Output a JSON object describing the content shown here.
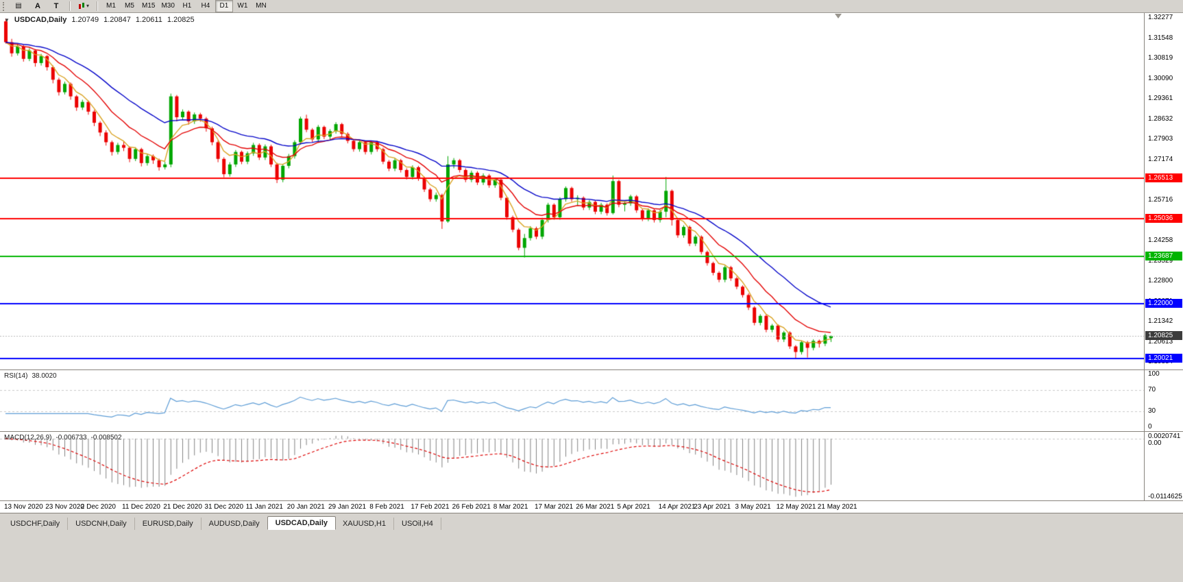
{
  "toolbar": {
    "menu_icon_glyph": "▤",
    "dropdown_caret": "▾",
    "tool_buttons": [
      {
        "label": "A",
        "name": "font-tool-button"
      },
      {
        "label": "T",
        "name": "text-tool-button"
      }
    ],
    "timeframes": [
      "M1",
      "M5",
      "M15",
      "M30",
      "H1",
      "H4",
      "D1",
      "W1",
      "MN"
    ],
    "active_timeframe": "D1"
  },
  "chart_header": {
    "symbol": "USDCAD,Daily",
    "open": "1.20749",
    "high": "1.20847",
    "low": "1.20611",
    "close": "1.20825"
  },
  "chart_data": {
    "type": "candlestick",
    "symbol": "USDCAD",
    "timeframe": "Daily",
    "colors": {
      "bull": "#00A600",
      "bear": "#EB0000"
    },
    "price_axis": {
      "min": 1.1962,
      "max": 1.3245,
      "labels": [
        "1.32277",
        "1.31548",
        "1.30819",
        "1.30090",
        "1.29361",
        "1.28632",
        "1.27903",
        "1.27174",
        "1.26445",
        "1.25716",
        "1.24987",
        "1.24258",
        "1.23529",
        "1.22800",
        "1.22071",
        "1.21342",
        "1.20613",
        "1.19884"
      ]
    },
    "x_labels": [
      {
        "text": "13 Nov 2020",
        "i": 0
      },
      {
        "text": "23 Nov 2020",
        "i": 7
      },
      {
        "text": "2 Dec 2020",
        "i": 13
      },
      {
        "text": "11 Dec 2020",
        "i": 20
      },
      {
        "text": "21 Dec 2020",
        "i": 27
      },
      {
        "text": "31 Dec 2020",
        "i": 34
      },
      {
        "text": "11 Jan 2021",
        "i": 41
      },
      {
        "text": "20 Jan 2021",
        "i": 48
      },
      {
        "text": "29 Jan 2021",
        "i": 55
      },
      {
        "text": "8 Feb 2021",
        "i": 62
      },
      {
        "text": "17 Feb 2021",
        "i": 69
      },
      {
        "text": "26 Feb 2021",
        "i": 76
      },
      {
        "text": "8 Mar 2021",
        "i": 83
      },
      {
        "text": "17 Mar 2021",
        "i": 90
      },
      {
        "text": "26 Mar 2021",
        "i": 97
      },
      {
        "text": "5 Apr 2021",
        "i": 104
      },
      {
        "text": "14 Apr 2021",
        "i": 111
      },
      {
        "text": "23 Apr 2021",
        "i": 117
      },
      {
        "text": "3 May 2021",
        "i": 124
      },
      {
        "text": "12 May 2021",
        "i": 131
      },
      {
        "text": "21 May 2021",
        "i": 138
      }
    ],
    "moving_averages": [
      {
        "period": 5,
        "color": "#D9A221"
      },
      {
        "period": 12,
        "color": "#E30000"
      },
      {
        "period": 26,
        "color": "#0000C8"
      }
    ],
    "hlines": [
      {
        "price": 1.26513,
        "label": "1.26513",
        "color": "#FF0000"
      },
      {
        "price": 1.25036,
        "label": "1.25036",
        "color": "#FF0000"
      },
      {
        "price": 1.23687,
        "label": "1.23687",
        "color": "#00B400"
      },
      {
        "price": 1.22,
        "label": "1.22000",
        "color": "#0000FF"
      },
      {
        "price": 1.20021,
        "label": "1.20021",
        "color": "#0000FF"
      }
    ],
    "current_price": {
      "value": 1.20825,
      "label": "1.20825",
      "badge_color": "#3C3C3C"
    },
    "candles": [
      [
        1.3215,
        1.3225,
        1.3135,
        1.314
      ],
      [
        1.314,
        1.3152,
        1.3088,
        1.31
      ],
      [
        1.31,
        1.3133,
        1.3092,
        1.3125
      ],
      [
        1.3125,
        1.3131,
        1.307,
        1.308
      ],
      [
        1.308,
        1.3118,
        1.3072,
        1.311
      ],
      [
        1.311,
        1.3115,
        1.3052,
        1.3065
      ],
      [
        1.3065,
        1.3098,
        1.3056,
        1.309
      ],
      [
        1.309,
        1.3094,
        1.3038,
        1.305
      ],
      [
        1.305,
        1.3056,
        1.2992,
        1.3005
      ],
      [
        1.3005,
        1.3012,
        1.2948,
        1.296
      ],
      [
        1.296,
        1.2998,
        1.2952,
        1.299
      ],
      [
        1.299,
        1.2995,
        1.2933,
        1.2945
      ],
      [
        1.2945,
        1.295,
        1.2893,
        1.2905
      ],
      [
        1.2905,
        1.2933,
        1.2896,
        1.2925
      ],
      [
        1.2925,
        1.293,
        1.2879,
        1.289
      ],
      [
        1.289,
        1.2896,
        1.2838,
        1.285
      ],
      [
        1.285,
        1.2856,
        1.2802,
        1.2815
      ],
      [
        1.2815,
        1.2823,
        1.2768,
        1.278
      ],
      [
        1.278,
        1.2786,
        1.2732,
        1.2745
      ],
      [
        1.2745,
        1.2778,
        1.2736,
        1.277
      ],
      [
        1.277,
        1.2785,
        1.2748,
        1.276
      ],
      [
        1.276,
        1.2765,
        1.2708,
        1.272
      ],
      [
        1.272,
        1.2762,
        1.2712,
        1.2755
      ],
      [
        1.2755,
        1.276,
        1.2693,
        1.2705
      ],
      [
        1.2705,
        1.2739,
        1.2696,
        1.273
      ],
      [
        1.273,
        1.2736,
        1.2702,
        1.2715
      ],
      [
        1.2715,
        1.2721,
        1.2678,
        1.269
      ],
      [
        1.269,
        1.2709,
        1.2682,
        1.27
      ],
      [
        1.27,
        1.2955,
        1.269,
        1.2945
      ],
      [
        1.2945,
        1.295,
        1.2855,
        1.287
      ],
      [
        1.287,
        1.2898,
        1.2861,
        1.289
      ],
      [
        1.289,
        1.2895,
        1.2843,
        1.2855
      ],
      [
        1.2855,
        1.2887,
        1.2846,
        1.288
      ],
      [
        1.288,
        1.2886,
        1.2854,
        1.2865
      ],
      [
        1.2865,
        1.2871,
        1.2818,
        1.283
      ],
      [
        1.283,
        1.2836,
        1.2769,
        1.278
      ],
      [
        1.278,
        1.2786,
        1.2708,
        1.272
      ],
      [
        1.272,
        1.2726,
        1.2654,
        1.2665
      ],
      [
        1.2665,
        1.2708,
        1.2656,
        1.27
      ],
      [
        1.27,
        1.2752,
        1.2691,
        1.2745
      ],
      [
        1.2745,
        1.275,
        1.2701,
        1.271
      ],
      [
        1.271,
        1.2747,
        1.2701,
        1.274
      ],
      [
        1.274,
        1.2778,
        1.2731,
        1.277
      ],
      [
        1.277,
        1.2776,
        1.2716,
        1.2725
      ],
      [
        1.2725,
        1.2772,
        1.2716,
        1.2765
      ],
      [
        1.2765,
        1.2771,
        1.2691,
        1.27
      ],
      [
        1.27,
        1.2706,
        1.2633,
        1.2645
      ],
      [
        1.2645,
        1.2702,
        1.2636,
        1.2695
      ],
      [
        1.2695,
        1.2738,
        1.2686,
        1.273
      ],
      [
        1.273,
        1.2787,
        1.2721,
        1.278
      ],
      [
        1.278,
        1.2872,
        1.2771,
        1.2865
      ],
      [
        1.2865,
        1.2879,
        1.2816,
        1.2825
      ],
      [
        1.2825,
        1.2831,
        1.2781,
        1.279
      ],
      [
        1.279,
        1.2842,
        1.2781,
        1.2835
      ],
      [
        1.2835,
        1.284,
        1.2791,
        1.28
      ],
      [
        1.28,
        1.2827,
        1.2791,
        1.282
      ],
      [
        1.282,
        1.2852,
        1.2811,
        1.2845
      ],
      [
        1.2845,
        1.285,
        1.2801,
        1.281
      ],
      [
        1.281,
        1.2816,
        1.2776,
        1.2785
      ],
      [
        1.2785,
        1.279,
        1.2746,
        1.2755
      ],
      [
        1.2755,
        1.2787,
        1.2746,
        1.278
      ],
      [
        1.278,
        1.2785,
        1.2736,
        1.2745
      ],
      [
        1.2745,
        1.2786,
        1.2736,
        1.278
      ],
      [
        1.278,
        1.2785,
        1.2746,
        1.2755
      ],
      [
        1.2755,
        1.276,
        1.2701,
        1.271
      ],
      [
        1.271,
        1.2716,
        1.2676,
        1.2685
      ],
      [
        1.2685,
        1.2722,
        1.2676,
        1.2715
      ],
      [
        1.2715,
        1.272,
        1.2671,
        1.268
      ],
      [
        1.268,
        1.2686,
        1.2646,
        1.2655
      ],
      [
        1.2655,
        1.2697,
        1.2646,
        1.269
      ],
      [
        1.269,
        1.2695,
        1.2641,
        1.265
      ],
      [
        1.265,
        1.2656,
        1.2601,
        1.261
      ],
      [
        1.261,
        1.2616,
        1.2566,
        1.2575
      ],
      [
        1.2575,
        1.2599,
        1.2566,
        1.259
      ],
      [
        1.259,
        1.2595,
        1.2468,
        1.2495
      ],
      [
        1.2495,
        1.273,
        1.249,
        1.27
      ],
      [
        1.27,
        1.2723,
        1.2686,
        1.2715
      ],
      [
        1.2715,
        1.272,
        1.2671,
        1.268
      ],
      [
        1.268,
        1.2686,
        1.2636,
        1.2645
      ],
      [
        1.2645,
        1.2678,
        1.2636,
        1.267
      ],
      [
        1.267,
        1.2676,
        1.2626,
        1.2635
      ],
      [
        1.2635,
        1.2668,
        1.2626,
        1.266
      ],
      [
        1.266,
        1.2666,
        1.2616,
        1.2625
      ],
      [
        1.2625,
        1.2653,
        1.2616,
        1.2645
      ],
      [
        1.2645,
        1.265,
        1.2571,
        1.258
      ],
      [
        1.258,
        1.2586,
        1.2501,
        1.251
      ],
      [
        1.251,
        1.2516,
        1.2456,
        1.2465
      ],
      [
        1.2465,
        1.2471,
        1.2391,
        1.24
      ],
      [
        1.24,
        1.245,
        1.2365,
        1.2435
      ],
      [
        1.2435,
        1.2478,
        1.2426,
        1.247
      ],
      [
        1.247,
        1.2476,
        1.2431,
        1.244
      ],
      [
        1.244,
        1.2508,
        1.2431,
        1.25
      ],
      [
        1.25,
        1.2562,
        1.2491,
        1.2555
      ],
      [
        1.2555,
        1.256,
        1.2501,
        1.251
      ],
      [
        1.251,
        1.2582,
        1.2501,
        1.2575
      ],
      [
        1.2575,
        1.2621,
        1.2566,
        1.2615
      ],
      [
        1.2615,
        1.262,
        1.2566,
        1.2575
      ],
      [
        1.2575,
        1.2589,
        1.2551,
        1.258
      ],
      [
        1.258,
        1.2585,
        1.2536,
        1.2545
      ],
      [
        1.2545,
        1.2572,
        1.2536,
        1.2565
      ],
      [
        1.2565,
        1.257,
        1.2521,
        1.253
      ],
      [
        1.253,
        1.2562,
        1.2521,
        1.2555
      ],
      [
        1.2555,
        1.256,
        1.2516,
        1.2525
      ],
      [
        1.2525,
        1.266,
        1.252,
        1.264
      ],
      [
        1.264,
        1.2645,
        1.2546,
        1.2555
      ],
      [
        1.2555,
        1.2568,
        1.2531,
        1.256
      ],
      [
        1.256,
        1.2591,
        1.2551,
        1.2585
      ],
      [
        1.2585,
        1.259,
        1.2526,
        1.2535
      ],
      [
        1.2535,
        1.254,
        1.2496,
        1.2505
      ],
      [
        1.2505,
        1.2542,
        1.2496,
        1.2535
      ],
      [
        1.2535,
        1.254,
        1.2491,
        1.25
      ],
      [
        1.25,
        1.2537,
        1.2491,
        1.253
      ],
      [
        1.253,
        1.2655,
        1.251,
        1.2605
      ],
      [
        1.2605,
        1.261,
        1.248,
        1.25
      ],
      [
        1.25,
        1.2506,
        1.2436,
        1.2445
      ],
      [
        1.2445,
        1.2481,
        1.2436,
        1.2475
      ],
      [
        1.2475,
        1.248,
        1.2406,
        1.2415
      ],
      [
        1.2415,
        1.2446,
        1.2406,
        1.244
      ],
      [
        1.244,
        1.2445,
        1.2376,
        1.2385
      ],
      [
        1.2385,
        1.239,
        1.2336,
        1.2345
      ],
      [
        1.2345,
        1.235,
        1.2301,
        1.231
      ],
      [
        1.231,
        1.2316,
        1.2276,
        1.2285
      ],
      [
        1.2285,
        1.2336,
        1.2276,
        1.233
      ],
      [
        1.233,
        1.2335,
        1.2281,
        1.229
      ],
      [
        1.229,
        1.2296,
        1.2251,
        1.226
      ],
      [
        1.226,
        1.2265,
        1.2221,
        1.223
      ],
      [
        1.223,
        1.2236,
        1.2176,
        1.2185
      ],
      [
        1.2185,
        1.219,
        1.2121,
        1.213
      ],
      [
        1.213,
        1.2161,
        1.2121,
        1.2155
      ],
      [
        1.2155,
        1.216,
        1.2096,
        1.2105
      ],
      [
        1.2105,
        1.2126,
        1.2096,
        1.212
      ],
      [
        1.212,
        1.2125,
        1.2061,
        1.207
      ],
      [
        1.207,
        1.2101,
        1.2061,
        1.2095
      ],
      [
        1.2095,
        1.21,
        1.2036,
        1.2045
      ],
      [
        1.2045,
        1.205,
        1.2001,
        1.2025
      ],
      [
        1.2025,
        1.2066,
        1.2016,
        1.206
      ],
      [
        1.206,
        1.2065,
        1.2005,
        1.204
      ],
      [
        1.204,
        1.2071,
        1.2031,
        1.2065
      ],
      [
        1.2065,
        1.207,
        1.2041,
        1.2055
      ],
      [
        1.2055,
        1.2091,
        1.2046,
        1.2085
      ],
      [
        1.20749,
        1.20847,
        1.20611,
        1.20825
      ]
    ]
  },
  "rsi": {
    "name": "RSI(14)",
    "value": "38.0020",
    "period": 14,
    "levels": [
      100,
      70,
      30,
      0
    ],
    "level_lines": [
      70,
      30
    ],
    "color": "#5B9BD5"
  },
  "macd": {
    "name": "MACD(12,26,9)",
    "macd_value": "-0.006733",
    "signal_value": "-0.008502",
    "fast": 12,
    "slow": 26,
    "signal": 9,
    "axis_labels": [
      "0.0020741",
      "0.00",
      "-0.0114625"
    ],
    "histogram_color": "#808080",
    "signal_color": "#DD0000"
  },
  "tabs": {
    "items": [
      {
        "label": "USDCHF,Daily",
        "active": false
      },
      {
        "label": "USDCNH,Daily",
        "active": false
      },
      {
        "label": "EURUSD,Daily",
        "active": false
      },
      {
        "label": "AUDUSD,Daily",
        "active": false
      },
      {
        "label": "USDCAD,Daily",
        "active": true
      },
      {
        "label": "XAUUSD,H1",
        "active": false
      },
      {
        "label": "USOil,H4",
        "active": false
      }
    ]
  }
}
